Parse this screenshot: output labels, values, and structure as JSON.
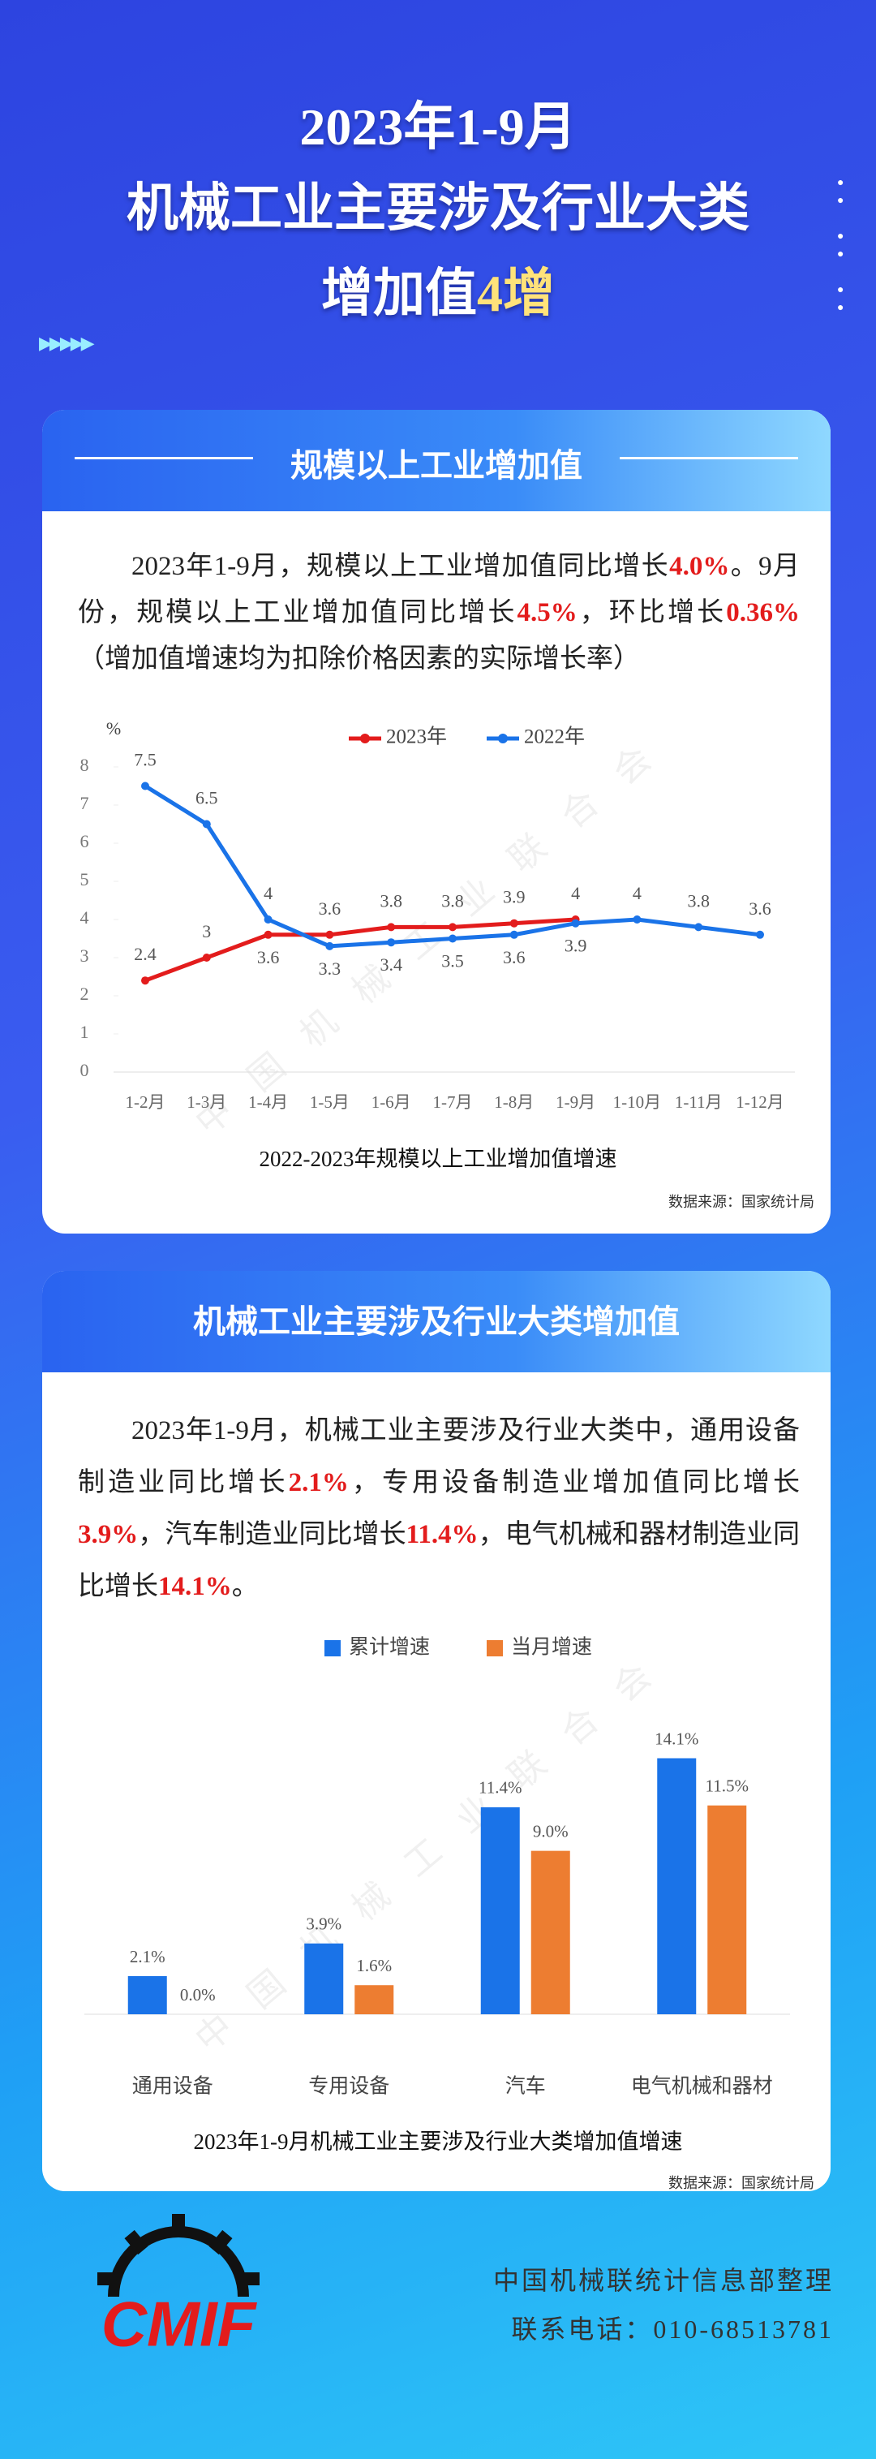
{
  "header": {
    "title_lines": [
      "2023年1-9月",
      "机械工业主要涉及行业大类"
    ],
    "title_last": [
      "增加值",
      "4增"
    ]
  },
  "section1": {
    "heading": "规模以上工业增加值",
    "paragraph": [
      "2023年1-9月，规模以上工业增加值同比增长",
      "4.0%",
      "。9月份，规模以上工业增加值同比增长",
      "4.5%",
      "，环比增长",
      "0.36%",
      "（增加值增速均为扣除价格因素的实际增长率）"
    ]
  },
  "section2": {
    "heading": "机械工业主要涉及行业大类增加值",
    "paragraph": [
      "2023年1-9月，机械工业主要涉及行业大类中，通用设备制造业同比增长",
      "2.1%",
      "，专用设备制造业增加值同比增长",
      "3.9%",
      "，汽车制造业同比增长",
      "11.4%",
      "，电气机械和器材制造业同比增长",
      "14.1%",
      "。"
    ]
  },
  "chart_data": [
    {
      "type": "line",
      "title": "2022-2023年规模以上工业增加值增速",
      "y_label": "%",
      "source": "数据来源：国家统计局",
      "watermark": "中国机械工业联合会",
      "categories": [
        "1-2月",
        "1-3月",
        "1-4月",
        "1-5月",
        "1-6月",
        "1-7月",
        "1-8月",
        "1-9月",
        "1-10月",
        "1-11月",
        "1-12月"
      ],
      "series": [
        {
          "name": "2023年",
          "color": "#e31c1c",
          "values": [
            2.4,
            3.0,
            3.6,
            3.6,
            3.8,
            3.8,
            3.9,
            4.0,
            null,
            null,
            null
          ]
        },
        {
          "name": "2022年",
          "color": "#1a73e8",
          "values": [
            7.5,
            6.5,
            4.0,
            3.3,
            3.4,
            3.5,
            3.6,
            3.9,
            4.0,
            3.8,
            3.6
          ]
        }
      ],
      "ylim": [
        0,
        8
      ],
      "yticks": [
        0,
        1,
        2,
        3,
        4,
        5,
        6,
        7,
        8
      ]
    },
    {
      "type": "bar",
      "title": "2023年1-9月机械工业主要涉及行业大类增加值增速",
      "source": "数据来源：国家统计局",
      "watermark": "中国机械工业联合会",
      "categories": [
        "通用设备",
        "专用设备",
        "汽车",
        "电气机械和器材"
      ],
      "series": [
        {
          "name": "累计增速",
          "color": "#1a73e8",
          "values": [
            2.1,
            3.9,
            11.4,
            14.1
          ],
          "value_labels": [
            "2.1%",
            "3.9%",
            "11.4%",
            "14.1%"
          ]
        },
        {
          "name": "当月增速",
          "color": "#ed7d31",
          "values": [
            0.0,
            1.6,
            9.0,
            11.5
          ],
          "value_labels": [
            "0.0%",
            "1.6%",
            "9.0%",
            "11.5%"
          ]
        }
      ],
      "ylim": [
        0,
        16
      ]
    }
  ],
  "footer": {
    "logo": "CMIF",
    "lines": [
      "中国机械联统计信息部整理",
      "联系电话：010-68513781"
    ]
  }
}
